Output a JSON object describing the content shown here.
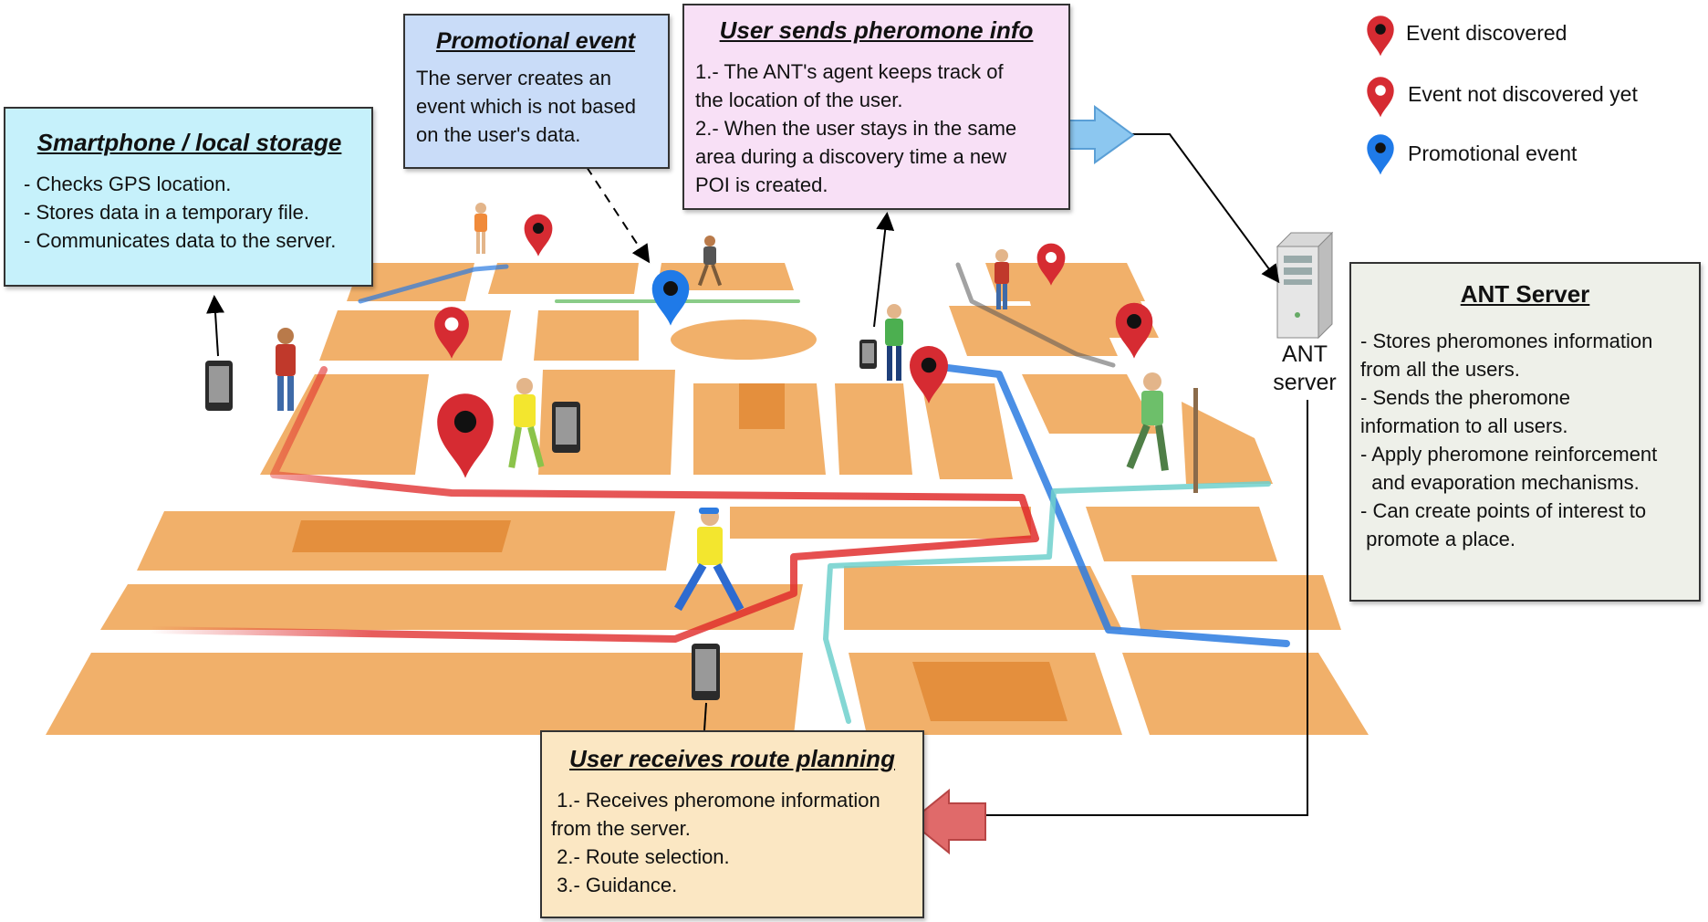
{
  "legend": {
    "items": [
      {
        "label": "Event discovered",
        "icon": "pin-red-filled",
        "color": "#d62b32"
      },
      {
        "label": "Event not discovered yet",
        "icon": "pin-red-hollow",
        "color": "#d62b32"
      },
      {
        "label": "Promotional event",
        "icon": "pin-blue",
        "color": "#1f7ae8"
      }
    ]
  },
  "smartphone_box": {
    "title": "Smartphone / local storage",
    "lines": [
      "- Checks GPS location.",
      "- Stores data in a temporary file.",
      "- Communicates data to the server."
    ]
  },
  "promo_box": {
    "title": "Promotional event",
    "lines": [
      "The server creates an",
      "event which is not based",
      "on the user's data."
    ]
  },
  "sends_box": {
    "title": "User sends pheromone info",
    "lines": [
      "1.- The ANT's agent keeps track of",
      "the location of the user.",
      "2.- When the user stays in the same",
      "area during a discovery time a new",
      "POI is created."
    ]
  },
  "server_box": {
    "title": "ANT Server",
    "lines": [
      "- Stores pheromones information",
      "from all the users.",
      "- Sends the pheromone",
      "information to all users.",
      "- Apply pheromone reinforcement",
      "  and evaporation mechanisms.",
      "- Can create points of interest to",
      " promote a place."
    ]
  },
  "route_box": {
    "title": "User receives route planning",
    "lines": [
      " 1.- Receives pheromone information",
      "from the server.",
      " 2.- Route selection.",
      " 3.- Guidance."
    ]
  },
  "server_label": [
    "ANT",
    "server"
  ],
  "colors": {
    "map_block": "#f1b06a",
    "map_block_dark": "#e48f3d",
    "road": "#ffffff",
    "pheromone_red": "#e02a2a",
    "pheromone_blue": "#2b7be0",
    "pheromone_cyan": "#6fd0cc",
    "arrow_blue": "#8cc7f0",
    "arrow_red": "#e06a6a"
  }
}
